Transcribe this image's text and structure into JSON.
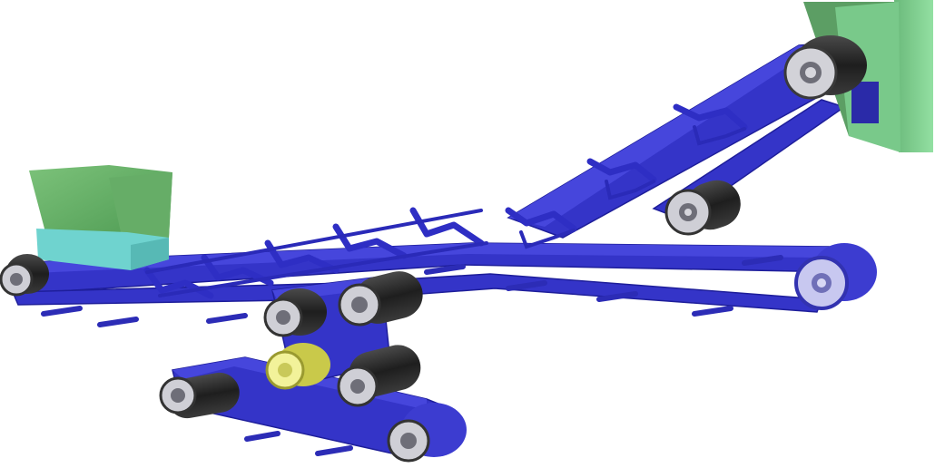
{
  "scene": {
    "colors": {
      "background": "#ffffff",
      "belt": "#3434c8",
      "belt_highlight": "#4646dc",
      "frame": "#2e2ec4",
      "roller_drum": "#2b2b2b",
      "roller_cap": "#bdbdc4",
      "roller_hub": "#6e6e78",
      "drive_roller": "#e6e67a",
      "drive_roller_cap": "#f2f29a",
      "hopper_green": "#6db36d",
      "hopper_cyan": "#6fd3cf",
      "discharge_green": "#86d89a"
    },
    "icons": [
      "feed-hopper",
      "discharge-chute",
      "conveyor-belt",
      "roller",
      "idler-bracket",
      "drive-roller"
    ]
  }
}
